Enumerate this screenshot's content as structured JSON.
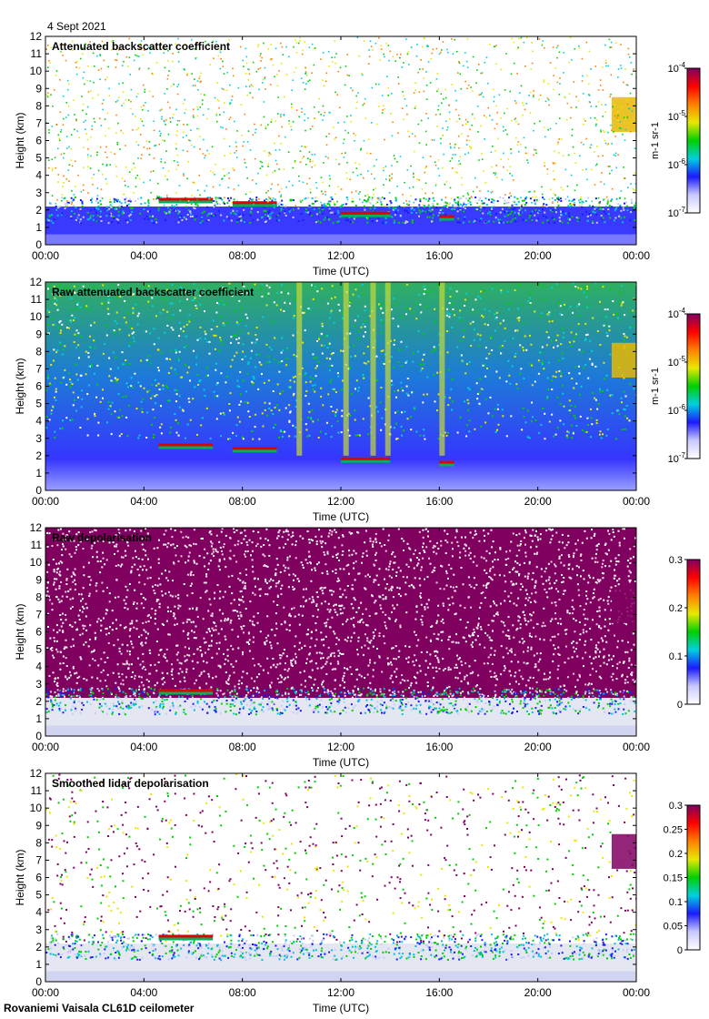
{
  "figure": {
    "date": "4 Sept 2021",
    "instrument": "Rovaniemi Vaisala CL61D ceilometer"
  },
  "chart_data": [
    {
      "type": "heatmap",
      "title": "Attenuated backscatter coefficient",
      "xlabel": "Time (UTC)",
      "ylabel": "Height (km)",
      "x_ticks": [
        "00:00",
        "04:00",
        "08:00",
        "12:00",
        "16:00",
        "20:00",
        "00:00"
      ],
      "y_ticks": [
        "0",
        "1",
        "2",
        "3",
        "4",
        "5",
        "6",
        "7",
        "8",
        "9",
        "10",
        "11",
        "12"
      ],
      "xlim_hours": [
        0,
        24
      ],
      "ylim": [
        0,
        12
      ],
      "colorbar": {
        "scale": "log",
        "unit_text": "m-1 sr-1",
        "ticks": [
          "-7",
          "-6",
          "-5",
          "-4"
        ],
        "tick_base": "10"
      },
      "features": [
        {
          "kind": "aerosol_layer",
          "t_start": 0,
          "t_end": 24,
          "h_bottom": 0,
          "h_top": 2.2
        },
        {
          "kind": "cloud_layer",
          "t_start": 4.6,
          "t_end": 6.8,
          "height": 2.5
        },
        {
          "kind": "cloud_layer",
          "t_start": 7.6,
          "t_end": 9.4,
          "height": 2.3
        },
        {
          "kind": "cloud_layer",
          "t_start": 12.0,
          "t_end": 14.0,
          "height": 1.7
        },
        {
          "kind": "cloud_layer",
          "t_start": 16.0,
          "t_end": 16.6,
          "height": 1.5
        },
        {
          "kind": "cirrus",
          "t_start": 23.0,
          "t_end": 24,
          "h_bottom": 6.5,
          "h_top": 8.5
        }
      ]
    },
    {
      "type": "heatmap",
      "title": "Raw attenuated backscatter coefficient",
      "xlabel": "Time (UTC)",
      "ylabel": "Height (km)",
      "x_ticks": [
        "00:00",
        "04:00",
        "08:00",
        "12:00",
        "16:00",
        "20:00",
        "00:00"
      ],
      "y_ticks": [
        "0",
        "1",
        "2",
        "3",
        "4",
        "5",
        "6",
        "7",
        "8",
        "9",
        "10",
        "11",
        "12"
      ],
      "xlim_hours": [
        0,
        24
      ],
      "ylim": [
        0,
        12
      ],
      "colorbar": {
        "scale": "log",
        "unit_text": "m-1 sr-1",
        "ticks": [
          "-7",
          "-6",
          "-5",
          "-4"
        ],
        "tick_base": "10"
      },
      "features": [
        {
          "kind": "noise_field",
          "t_start": 0,
          "t_end": 24,
          "h_bottom": 0,
          "h_top": 12
        },
        {
          "kind": "cloud_layer",
          "t_start": 4.6,
          "t_end": 6.8,
          "height": 2.5
        },
        {
          "kind": "cloud_layer",
          "t_start": 7.6,
          "t_end": 9.4,
          "height": 2.3
        },
        {
          "kind": "cloud_layer",
          "t_start": 12.0,
          "t_end": 14.0,
          "height": 1.7
        },
        {
          "kind": "cloud_layer",
          "t_start": 16.0,
          "t_end": 16.6,
          "height": 1.5
        },
        {
          "kind": "cirrus",
          "t_start": 23.0,
          "t_end": 24,
          "h_bottom": 6.5,
          "h_top": 8.5
        }
      ]
    },
    {
      "type": "heatmap",
      "title": "Raw depolarisation",
      "xlabel": "Time (UTC)",
      "ylabel": "Height (km)",
      "x_ticks": [
        "00:00",
        "04:00",
        "08:00",
        "12:00",
        "16:00",
        "20:00",
        "00:00"
      ],
      "y_ticks": [
        "0",
        "1",
        "2",
        "3",
        "4",
        "5",
        "6",
        "7",
        "8",
        "9",
        "10",
        "11",
        "12"
      ],
      "xlim_hours": [
        0,
        24
      ],
      "ylim": [
        0,
        12
      ],
      "colorbar": {
        "scale": "linear",
        "unit_text": "",
        "ticks": [
          "0",
          "0.1",
          "0.2",
          "0.3"
        ],
        "range": [
          0,
          0.3
        ]
      },
      "features": [
        {
          "kind": "saturated_noise",
          "t_start": 0,
          "t_end": 24,
          "h_bottom": 2.2,
          "h_top": 12
        },
        {
          "kind": "aerosol_layer",
          "t_start": 0,
          "t_end": 24,
          "h_bottom": 0,
          "h_top": 2.2
        },
        {
          "kind": "cloud_layer",
          "t_start": 4.6,
          "t_end": 6.8,
          "height": 2.5
        },
        {
          "kind": "cirrus",
          "t_start": 23.0,
          "t_end": 24,
          "h_bottom": 6.5,
          "h_top": 8.5
        }
      ]
    },
    {
      "type": "heatmap",
      "title": "Smoothed lidar depolarisation",
      "xlabel": "Time (UTC)",
      "ylabel": "Height (km)",
      "x_ticks": [
        "00:00",
        "04:00",
        "08:00",
        "12:00",
        "16:00",
        "20:00",
        "00:00"
      ],
      "y_ticks": [
        "0",
        "1",
        "2",
        "3",
        "4",
        "5",
        "6",
        "7",
        "8",
        "9",
        "10",
        "11",
        "12"
      ],
      "xlim_hours": [
        0,
        24
      ],
      "ylim": [
        0,
        12
      ],
      "colorbar": {
        "scale": "linear",
        "unit_text": "",
        "ticks": [
          "0",
          "0.05",
          "0.1",
          "0.15",
          "0.2",
          "0.25",
          "0.3"
        ],
        "range": [
          0,
          0.3
        ]
      },
      "features": [
        {
          "kind": "sparse_noise",
          "t_start": 0,
          "t_end": 24,
          "h_bottom": 2.2,
          "h_top": 12
        },
        {
          "kind": "aerosol_layer",
          "t_start": 0,
          "t_end": 24,
          "h_bottom": 0,
          "h_top": 2.2
        },
        {
          "kind": "cloud_layer",
          "t_start": 4.6,
          "t_end": 6.8,
          "height": 2.5
        },
        {
          "kind": "cirrus",
          "t_start": 23.0,
          "t_end": 24,
          "h_bottom": 6.5,
          "h_top": 8.5
        }
      ]
    }
  ]
}
